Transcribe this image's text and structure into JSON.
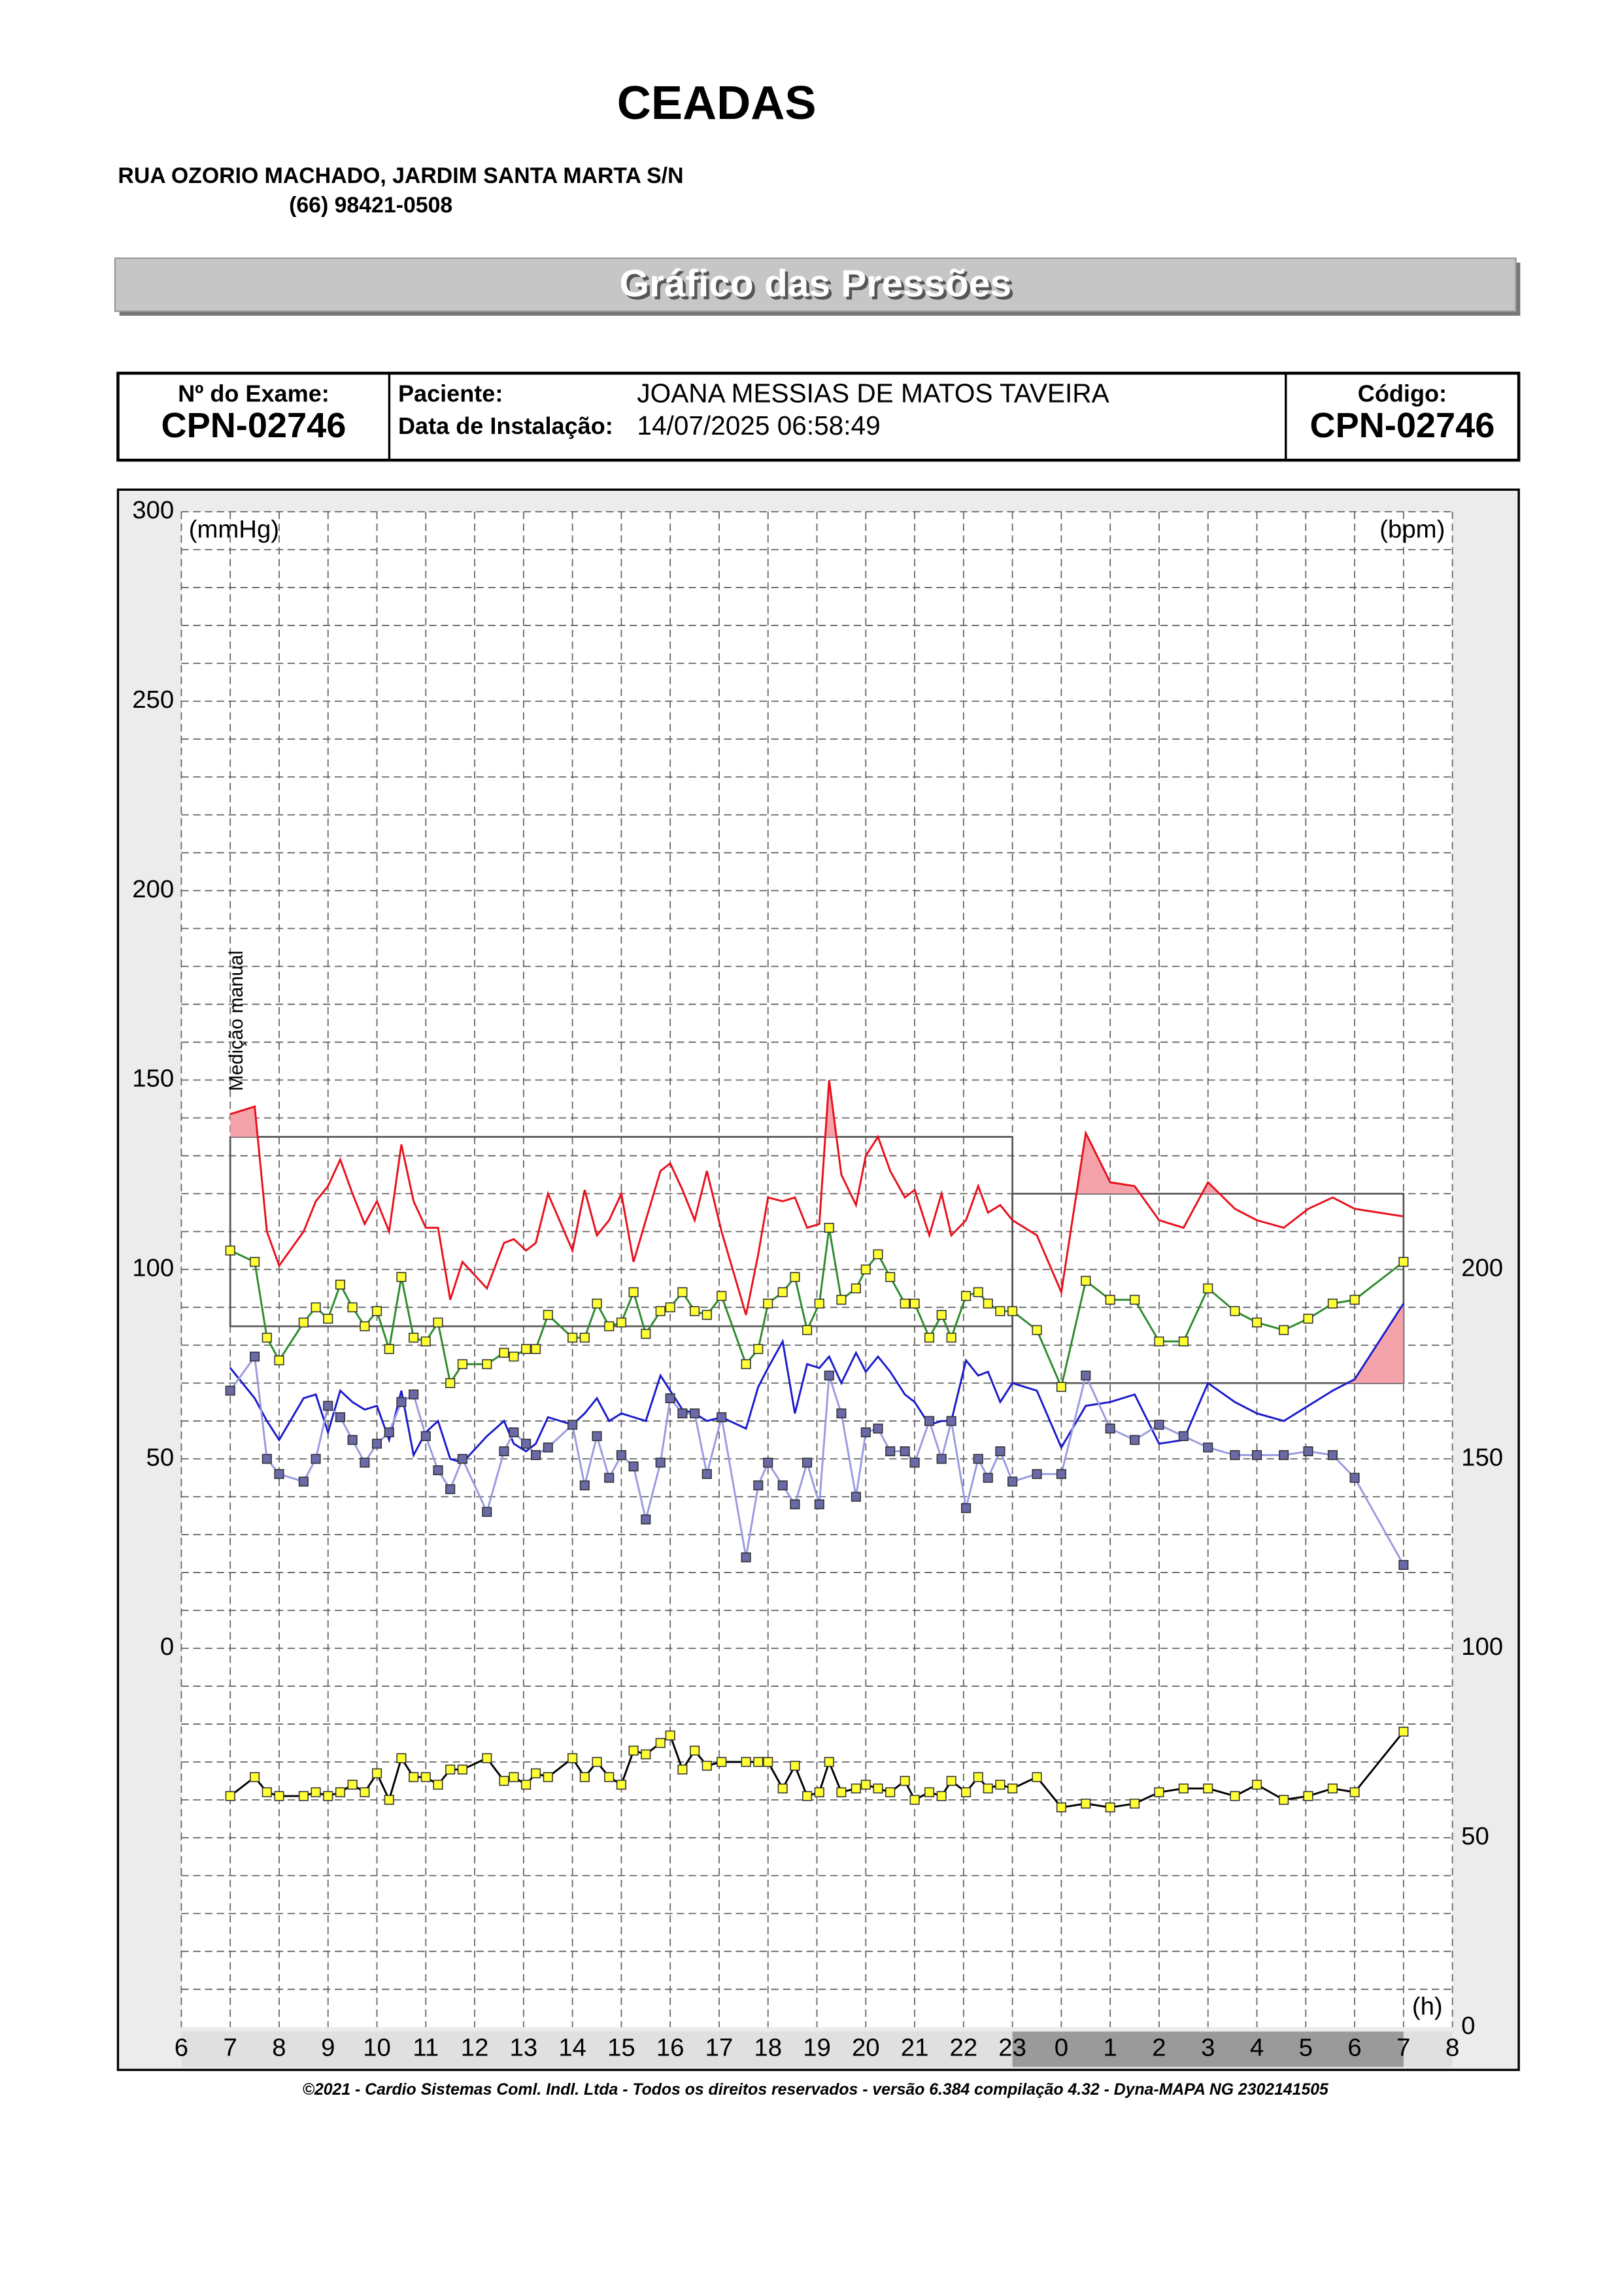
{
  "header": {
    "title": "CEADAS",
    "address": "RUA OZORIO MACHADO, JARDIM SANTA MARTA S/N",
    "phone": "(66) 98421-0508"
  },
  "section_title": "Gráfico das Pressões",
  "info": {
    "exam_label": "Nº do Exame:",
    "exam": "CPN-02746",
    "patient_label": "Paciente:",
    "patient": "JOANA MESSIAS DE MATOS TAVEIRA",
    "install_label": "Data de Instalação:",
    "install": "14/07/2025 06:58:49",
    "code_label": "Código:",
    "code": "CPN-02746"
  },
  "chart_data": {
    "type": "line",
    "y_label": "(mmHg)",
    "y2_label": "(bpm)",
    "x_label": "(h)",
    "annotation": {
      "text": "Medição manual",
      "x": 7
    },
    "xlim": [
      6,
      32
    ],
    "xticks": [
      6,
      7,
      8,
      9,
      10,
      11,
      12,
      13,
      14,
      15,
      16,
      17,
      18,
      19,
      20,
      21,
      22,
      23,
      {
        "value": 24,
        "label": "0"
      },
      {
        "value": 25,
        "label": "1"
      },
      {
        "value": 26,
        "label": "2"
      },
      {
        "value": 27,
        "label": "3"
      },
      {
        "value": 28,
        "label": "4"
      },
      {
        "value": 29,
        "label": "5"
      },
      {
        "value": 30,
        "label": "6"
      },
      {
        "value": 31,
        "label": "7"
      },
      {
        "value": 32,
        "label": "8"
      }
    ],
    "ylim": [
      -100,
      300
    ],
    "yticks": [
      0,
      50,
      100,
      150,
      200,
      250,
      300
    ],
    "ygrid": [
      -90,
      -80,
      -70,
      -60,
      -50,
      -40,
      -30,
      -20,
      -10,
      10,
      20,
      30,
      40,
      60,
      70,
      80,
      90,
      110,
      120,
      130,
      140,
      160,
      170,
      180,
      190,
      210,
      220,
      230,
      240,
      260,
      270,
      280,
      290
    ],
    "y2lim": [
      0,
      400
    ],
    "y2ticks": [
      0,
      50,
      100,
      150,
      200
    ],
    "grid": true,
    "night": [
      23,
      31
    ],
    "limits": [
      {
        "x": [
          7,
          23
        ],
        "upper": 135,
        "lower": 85
      },
      {
        "x": [
          23,
          31
        ],
        "upper": 120,
        "lower": 70
      }
    ],
    "x": [
      7,
      7.5,
      7.75,
      8,
      8.5,
      8.75,
      9,
      9.25,
      9.5,
      9.75,
      10,
      10.25,
      10.5,
      10.75,
      11,
      11.25,
      11.5,
      11.75,
      12.25,
      12.6,
      12.8,
      13.05,
      13.25,
      13.5,
      14,
      14.25,
      14.5,
      14.75,
      15,
      15.25,
      15.5,
      15.8,
      16,
      16.25,
      16.5,
      16.75,
      17.05,
      17.55,
      17.8,
      18,
      18.3,
      18.55,
      18.8,
      19.05,
      19.25,
      19.5,
      19.8,
      20,
      20.25,
      20.5,
      20.8,
      21,
      21.3,
      21.55,
      21.75,
      22.05,
      22.3,
      22.5,
      22.75,
      23,
      23.5,
      24,
      24.5,
      25,
      25.5,
      26,
      26.5,
      27,
      27.55,
      28,
      28.55,
      29.05,
      29.55,
      30,
      31
    ],
    "series": [
      {
        "color": "#e8101c",
        "fill_above": "upper",
        "fill_color": "#f4a3ab",
        "values": [
          141,
          143,
          110,
          101,
          110,
          118,
          122,
          129,
          120,
          112,
          118,
          110,
          133,
          118,
          111,
          111,
          92,
          102,
          95,
          107,
          108,
          105,
          107,
          120,
          105,
          121,
          109,
          113,
          120,
          102,
          113,
          126,
          128,
          121,
          113,
          126,
          110,
          88,
          104,
          119,
          118,
          119,
          111,
          112,
          150,
          125,
          117,
          130,
          135,
          126,
          119,
          121,
          109,
          120,
          109,
          113,
          122,
          115,
          117,
          113,
          109,
          94,
          136,
          123,
          122,
          113,
          111,
          123,
          116,
          113,
          111,
          116,
          119,
          116,
          114
        ]
      },
      {
        "color": "#1a1acc",
        "fill_above": "lower",
        "fill_color": "#f4a3ab",
        "values": [
          74,
          66,
          60,
          55,
          66,
          67,
          57,
          68,
          65,
          63,
          64,
          55,
          68,
          51,
          57,
          60,
          50,
          49,
          56,
          60,
          54,
          52,
          54,
          61,
          59,
          62,
          66,
          60,
          62,
          61,
          60,
          72,
          68,
          63,
          62,
          60,
          61,
          58,
          69,
          74,
          81,
          62,
          75,
          74,
          77,
          70,
          78,
          73,
          77,
          73,
          67,
          65,
          59,
          60,
          60,
          76,
          72,
          73,
          65,
          70,
          68,
          53,
          64,
          65,
          67,
          54,
          55,
          70,
          65,
          62,
          60,
          64,
          68,
          71,
          91
        ]
      },
      {
        "color": "#2e8b2e",
        "marker": "square",
        "marker_color": "#ffff33",
        "values": [
          105,
          102,
          82,
          76,
          86,
          90,
          87,
          96,
          90,
          85,
          89,
          79,
          98,
          82,
          81,
          86,
          70,
          75,
          75,
          78,
          77,
          79,
          79,
          88,
          82,
          82,
          91,
          85,
          86,
          94,
          83,
          89,
          90,
          94,
          89,
          88,
          93,
          75,
          79,
          91,
          94,
          98,
          84,
          91,
          111,
          92,
          95,
          100,
          104,
          98,
          91,
          91,
          82,
          88,
          82,
          93,
          94,
          91,
          89,
          89,
          84,
          69,
          97,
          92,
          92,
          81,
          81,
          95,
          89,
          86,
          84,
          87,
          91,
          92,
          102
        ]
      },
      {
        "color": "#9a9ae0",
        "marker": "square",
        "marker_color": "#6a6aa8",
        "values": [
          68,
          77,
          50,
          46,
          44,
          50,
          64,
          61,
          55,
          49,
          54,
          57,
          65,
          67,
          56,
          47,
          42,
          50,
          36,
          52,
          57,
          54,
          51,
          53,
          59,
          43,
          56,
          45,
          51,
          48,
          34,
          49,
          66,
          62,
          62,
          46,
          61,
          24,
          43,
          49,
          43,
          38,
          49,
          38,
          72,
          62,
          40,
          57,
          58,
          52,
          52,
          49,
          60,
          50,
          60,
          37,
          50,
          45,
          52,
          44,
          46,
          46,
          72,
          58,
          55,
          59,
          56,
          53,
          51,
          51,
          51,
          52,
          51,
          45,
          22
        ]
      },
      {
        "color": "#000000",
        "marker": "square",
        "marker_color": "#ffff33",
        "axis": "y2",
        "values": [
          61,
          66,
          62,
          61,
          61,
          62,
          61,
          62,
          64,
          62,
          67,
          60,
          71,
          66,
          66,
          64,
          68,
          68,
          71,
          65,
          66,
          64,
          67,
          66,
          71,
          66,
          70,
          66,
          64,
          73,
          72,
          75,
          77,
          68,
          73,
          69,
          70,
          70,
          70,
          70,
          63,
          69,
          61,
          62,
          70,
          62,
          63,
          64,
          63,
          62,
          65,
          60,
          62,
          61,
          65,
          62,
          66,
          63,
          64,
          63,
          66,
          58,
          59,
          58,
          59,
          62,
          63,
          63,
          61,
          64,
          60,
          61,
          63,
          62,
          78
        ]
      }
    ]
  },
  "footer": "©2021 - Cardio Sistemas Coml. Indl. Ltda - Todos os direitos reservados - versão 6.384 compilação 4.32 - Dyna-MAPA NG 2302141505"
}
